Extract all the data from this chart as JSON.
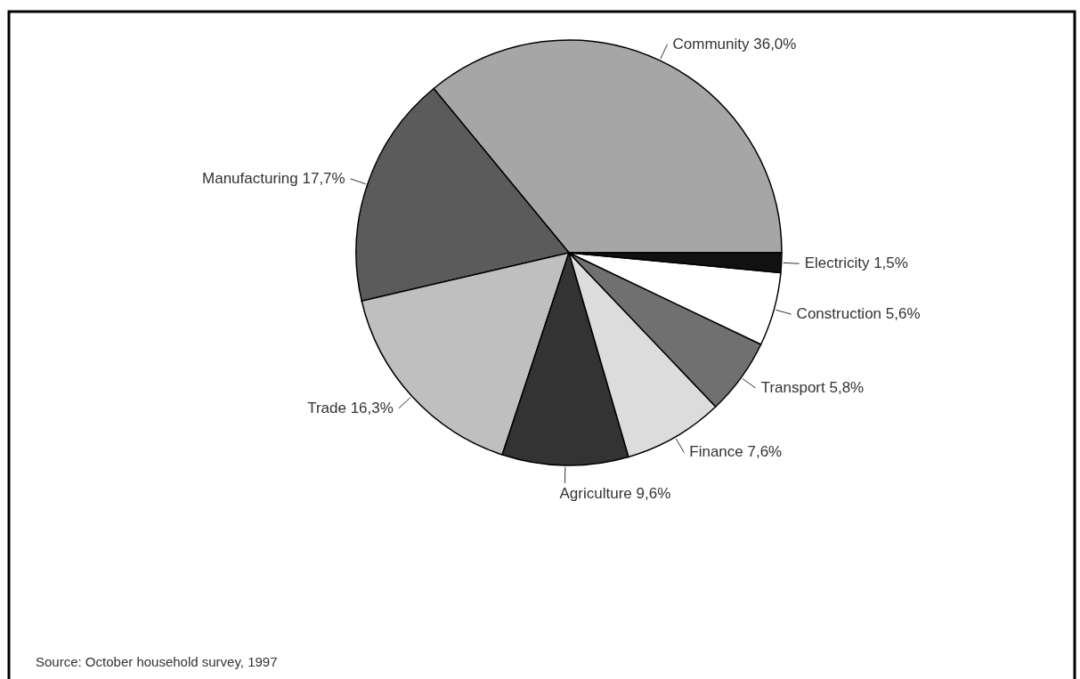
{
  "chart_data": {
    "type": "pie",
    "categories": [
      "Community",
      "Manufacturing",
      "Trade",
      "Agriculture",
      "Finance",
      "Transport",
      "Construction",
      "Electricity"
    ],
    "values": [
      36.0,
      17.7,
      16.3,
      9.6,
      7.6,
      5.8,
      5.6,
      1.5
    ],
    "value_labels": [
      "36,0%",
      "17,7%",
      "16,3%",
      "9,6%",
      "7,6%",
      "5,8%",
      "5,6%",
      "1,5%"
    ],
    "colors": [
      "#a6a6a6",
      "#5b5b5b",
      "#bfbfbf",
      "#333333",
      "#dcdcdc",
      "#707070",
      "#ffffff",
      "#111111"
    ],
    "annotations": [
      "Source: October household survey, 1997"
    ]
  }
}
